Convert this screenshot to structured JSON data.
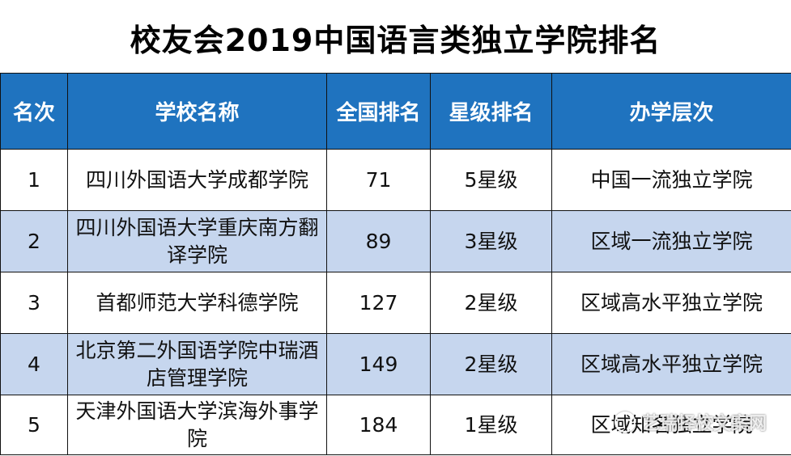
{
  "title": "校友会2019中国语言类独立学院排名",
  "headers": [
    "名次",
    "学校名称",
    "全国排名",
    "星级排名",
    "办学层次"
  ],
  "rows": [
    {
      "rank": "1",
      "name": "四川外国语大学成都学院",
      "national": "71",
      "star": "5星级",
      "level": "中国一流独立学院"
    },
    {
      "rank": "2",
      "name": "四川外国语大学重庆南方翻译学院",
      "national": "89",
      "star": "3星级",
      "level": "区域一流独立学院"
    },
    {
      "rank": "3",
      "name": "首都师范大学科德学院",
      "national": "127",
      "star": "2星级",
      "level": "区域高水平独立学院"
    },
    {
      "rank": "4",
      "name": "北京第二外国语学院中瑞酒店管理学院",
      "national": "149",
      "star": "2星级",
      "level": "区域高水平独立学院"
    },
    {
      "rank": "5",
      "name": "天津外国语大学滨海外事学院",
      "national": "184",
      "star": "1星级",
      "level": "区域知名独立学院"
    }
  ],
  "watermark": "艺瑞择校文案网",
  "colors": {
    "header_bg": "#1f73bf",
    "alt_row_bg": "#c6d6ee"
  },
  "icons": {
    "watermark": "wechat-logo-icon"
  }
}
